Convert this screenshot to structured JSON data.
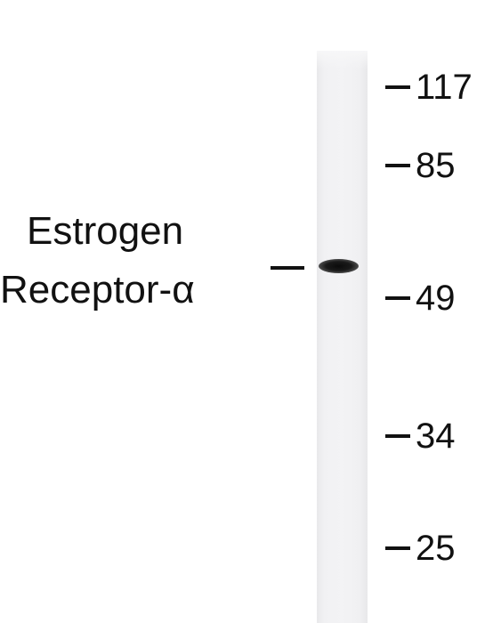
{
  "figure": {
    "type": "western-blot",
    "protein_label": {
      "line1": "Estrogen",
      "line2": "Receptor-α"
    },
    "markers": [
      {
        "id": "m117",
        "label": "117",
        "kda": 117
      },
      {
        "id": "m85",
        "label": "85",
        "kda": 85
      },
      {
        "id": "m49",
        "label": "49",
        "kda": 49
      },
      {
        "id": "m34",
        "label": "34",
        "kda": 34
      },
      {
        "id": "m25",
        "label": "25",
        "kda": 25
      }
    ],
    "lanes": 1,
    "bands": 1
  }
}
